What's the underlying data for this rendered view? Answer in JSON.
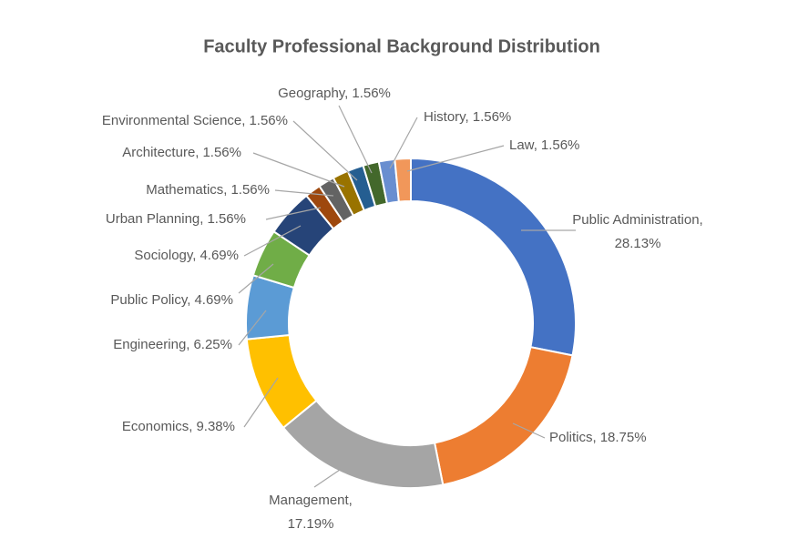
{
  "chart_data": {
    "type": "donut",
    "title": "Faculty Professional Background Distribution",
    "categories": [
      "Public Administration,",
      "Politics,",
      "Management,",
      "Economics,",
      "Engineering,",
      "Public Policy,",
      "Sociology,",
      "Urban Planning,",
      "Mathematics,",
      "Architecture,",
      "Environmental Science,",
      "Geography,",
      "History,",
      "Law,"
    ],
    "values": [
      28.13,
      18.75,
      17.19,
      9.38,
      6.25,
      4.69,
      4.69,
      1.56,
      1.56,
      1.56,
      1.56,
      1.56,
      1.56,
      1.56
    ],
    "value_labels": [
      "28.13%",
      "18.75%",
      "17.19%",
      "9.38%",
      "6.25%",
      "4.69%",
      "4.69%",
      "1.56%",
      "1.56%",
      "1.56%",
      "1.56%",
      "1.56%",
      "1.56%",
      "1.56%"
    ],
    "colors": [
      "#4472c4",
      "#ed7d31",
      "#a5a5a5",
      "#ffc000",
      "#5b9bd5",
      "#70ad47",
      "#264478",
      "#9e480e",
      "#636363",
      "#997300",
      "#255e91",
      "#43682b",
      "#698ed0",
      "#f1975a"
    ]
  }
}
